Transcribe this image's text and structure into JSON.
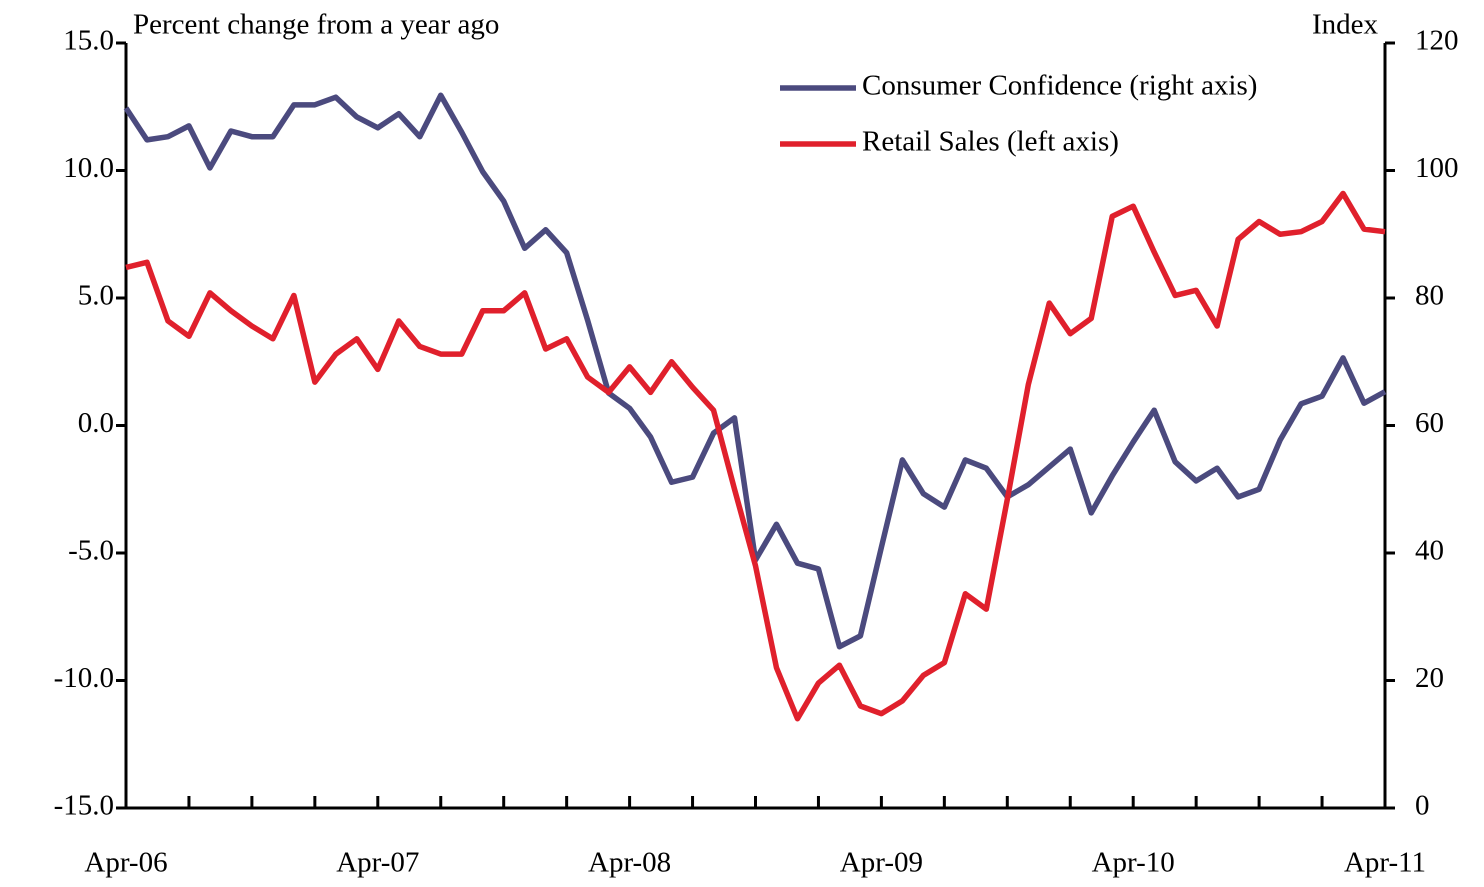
{
  "chart_data": {
    "type": "line",
    "y_label": "Percent change from a year ago",
    "y2_label": "Index",
    "categories": [
      "Apr-06",
      null,
      null,
      null,
      null,
      null,
      null,
      null,
      null,
      null,
      null,
      null,
      "Apr-07",
      null,
      null,
      null,
      null,
      null,
      null,
      null,
      null,
      null,
      null,
      null,
      "Apr-08",
      null,
      null,
      null,
      null,
      null,
      null,
      null,
      null,
      null,
      null,
      null,
      "Apr-09",
      null,
      null,
      null,
      null,
      null,
      null,
      null,
      null,
      null,
      null,
      null,
      "Apr-10",
      null,
      null,
      null,
      null,
      null,
      null,
      null,
      null,
      null,
      null,
      null,
      "Apr-11"
    ],
    "series": [
      {
        "name": "Consumer Confidence (right axis)",
        "color": "#4b4a7e",
        "axis": "y2",
        "values": [
          109.8,
          104.8,
          105.3,
          107.0,
          100.4,
          106.2,
          105.3,
          105.3,
          110.3,
          110.3,
          111.5,
          108.4,
          106.7,
          108.9,
          105.3,
          111.8,
          106.0,
          99.8,
          95.2,
          87.8,
          90.7,
          87.1,
          76.5,
          65.1,
          62.7,
          58.2,
          51.1,
          51.9,
          58.8,
          61.2,
          38.9,
          44.5,
          38.4,
          37.5,
          25.3,
          27.0,
          40.9,
          54.6,
          49.3,
          47.2,
          54.6,
          53.3,
          48.8,
          50.7,
          53.5,
          56.3,
          46.3,
          52.1,
          57.4,
          62.4,
          54.3,
          51.3,
          53.3,
          48.8,
          50.0,
          57.7,
          63.4,
          64.6,
          70.6,
          63.5,
          65.3
        ]
      },
      {
        "name": "Retail Sales (left axis)",
        "color": "#e0202c",
        "axis": "y",
        "values": [
          6.2,
          6.4,
          4.1,
          3.5,
          5.2,
          4.5,
          3.9,
          3.4,
          5.1,
          1.7,
          2.8,
          3.4,
          2.2,
          4.1,
          3.1,
          2.8,
          2.8,
          4.5,
          4.5,
          5.2,
          3.0,
          3.4,
          1.9,
          1.3,
          2.3,
          1.3,
          2.5,
          1.5,
          0.6,
          -2.5,
          -5.5,
          -9.5,
          -11.5,
          -10.1,
          -9.4,
          -11.0,
          -11.3,
          -10.8,
          -9.8,
          -9.3,
          -6.6,
          -7.2,
          -2.9,
          1.6,
          4.8,
          3.6,
          4.2,
          8.2,
          8.6,
          6.8,
          5.1,
          5.3,
          3.9,
          7.3,
          8.0,
          7.5,
          7.6,
          8.0,
          9.1,
          7.7,
          7.6
        ]
      }
    ],
    "ylim": [
      -15,
      15
    ],
    "yticks": [
      {
        "value": -15,
        "label": "-15.0"
      },
      {
        "value": -10,
        "label": "-10.0"
      },
      {
        "value": -5,
        "label": "-5.0"
      },
      {
        "value": 0,
        "label": "0.0"
      },
      {
        "value": 5,
        "label": "5.0"
      },
      {
        "value": 10,
        "label": "10.0"
      },
      {
        "value": 15,
        "label": "15.0"
      }
    ],
    "y2lim": [
      0,
      120
    ],
    "y2ticks": [
      0,
      20,
      40,
      60,
      80,
      100,
      120
    ],
    "grid": false,
    "legend": "upper right"
  }
}
